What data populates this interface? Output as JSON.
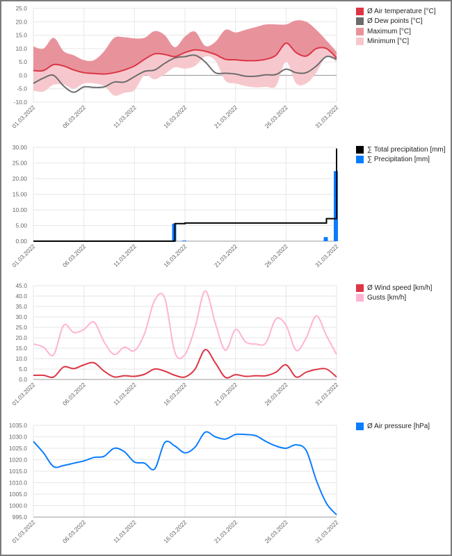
{
  "chart_data": [
    {
      "type": "area",
      "x": [
        "01.03.2022",
        "02.03.2022",
        "03.03.2022",
        "04.03.2022",
        "05.03.2022",
        "06.03.2022",
        "07.03.2022",
        "08.03.2022",
        "09.03.2022",
        "10.03.2022",
        "11.03.2022",
        "12.03.2022",
        "13.03.2022",
        "14.03.2022",
        "15.03.2022",
        "16.03.2022",
        "17.03.2022",
        "18.03.2022",
        "19.03.2022",
        "20.03.2022",
        "21.03.2022",
        "22.03.2022",
        "23.03.2022",
        "24.03.2022",
        "25.03.2022",
        "26.03.2022",
        "27.03.2022",
        "28.03.2022",
        "29.03.2022",
        "30.03.2022",
        "31.03.2022"
      ],
      "x_tick_labels": [
        "01.03.2022",
        "06.03.2022",
        "11.03.2022",
        "16.03.2022",
        "21.03.2022",
        "26.03.2022",
        "31.03.2022"
      ],
      "y_tick_labels": [
        "25.0",
        "20.0",
        "15.0",
        "10.0",
        "5.0",
        "0.0",
        "-5.0",
        "-10.0"
      ],
      "ylim": [
        -10,
        25
      ],
      "grid": true,
      "legend_position": "right",
      "series": [
        {
          "name": "Ø Air temperature [°C]",
          "color": "#dc3545",
          "values": [
            1.8,
            1.8,
            4,
            3.5,
            2,
            1,
            0.7,
            0.5,
            1,
            2,
            3.5,
            6,
            8,
            7.8,
            7,
            8.5,
            9.5,
            9,
            7.8,
            6,
            5.8,
            5.5,
            5.5,
            6,
            7.5,
            12,
            8.5,
            7.2,
            10,
            10,
            6.5
          ]
        },
        {
          "name": "Ø Dew points [°C]",
          "color": "#6c6c6c",
          "values": [
            -3,
            -1,
            0,
            -4,
            -6.3,
            -4.3,
            -4.5,
            -4.3,
            -2.5,
            -2.5,
            -0.5,
            1.5,
            2,
            4.5,
            6.5,
            7,
            7.5,
            5,
            1,
            0.8,
            0.5,
            -0.3,
            -0.3,
            0.2,
            0.3,
            2.3,
            1,
            1,
            3.5,
            7,
            6
          ]
        },
        {
          "name": "Maximum [°C]",
          "color": "#e8939c",
          "values": [
            10.8,
            10,
            14,
            9,
            7.5,
            5.7,
            5.7,
            9,
            14,
            14.2,
            13.8,
            14,
            16.5,
            15,
            10.5,
            14.5,
            16.3,
            11,
            12.5,
            17,
            16,
            17,
            18,
            19,
            19,
            19,
            20.5,
            20,
            17,
            13,
            8.8
          ]
        },
        {
          "name": "Minimum [°C]",
          "color": "#f6c8cd",
          "values": [
            -5.8,
            -6,
            -3.5,
            -3.5,
            -5,
            -3,
            -3,
            -4,
            -7.5,
            -6.5,
            -5.5,
            0,
            -1.5,
            0.5,
            3,
            2.5,
            3.5,
            7,
            5.5,
            -2,
            -3,
            -4,
            -4.5,
            -4.3,
            -4,
            5,
            -3,
            -3,
            1,
            7,
            5
          ]
        }
      ]
    },
    {
      "type": "bar",
      "x_tick_labels": [
        "01.03.2022",
        "06.03.2022",
        "11.03.2022",
        "16.03.2022",
        "21.03.2022",
        "26.03.2022",
        "31.03.2022"
      ],
      "y_tick_labels": [
        "30.00",
        "25.00",
        "20.00",
        "15.00",
        "10.00",
        "5.00",
        "0.00"
      ],
      "ylim": [
        0,
        30
      ],
      "grid": true,
      "legend_position": "right",
      "series": [
        {
          "name": "∑ Total precipitation [mm]",
          "color": "#000000",
          "type": "step",
          "values": [
            0,
            0,
            0,
            0,
            0,
            0,
            0,
            0,
            0,
            0,
            0,
            0,
            0,
            0,
            5.6,
            5.8,
            5.8,
            5.8,
            5.8,
            5.8,
            5.8,
            5.8,
            5.8,
            5.8,
            5.8,
            5.8,
            5.8,
            5.8,
            5.8,
            7.2,
            29.6
          ]
        },
        {
          "name": "∑ Precipitation [mm]",
          "color": "#0a7cff",
          "type": "bar",
          "values": [
            0,
            0,
            0,
            0,
            0,
            0,
            0,
            0,
            0,
            0,
            0,
            0,
            0,
            0,
            5.6,
            0.2,
            0,
            0,
            0,
            0,
            0,
            0,
            0,
            0,
            0,
            0,
            0,
            0,
            0,
            1.3,
            22.4
          ]
        }
      ]
    },
    {
      "type": "line",
      "x_tick_labels": [
        "01.03.2022",
        "06.03.2022",
        "11.03.2022",
        "16.03.2022",
        "21.03.2022",
        "26.03.2022",
        "31.03.2022"
      ],
      "y_tick_labels": [
        "45.0",
        "40.0",
        "35.0",
        "30.0",
        "25.0",
        "20.0",
        "15.0",
        "10.0",
        "5.0",
        "0.0"
      ],
      "ylim": [
        0,
        45
      ],
      "grid": true,
      "legend_position": "right",
      "series": [
        {
          "name": "Ø Wind speed [km/h]",
          "color": "#dc3545",
          "values": [
            2,
            2,
            1.2,
            6,
            5.2,
            7,
            8,
            4,
            1.2,
            1.8,
            1.5,
            2.5,
            5,
            4,
            2,
            1.2,
            5,
            14.3,
            8,
            1,
            2.3,
            1.5,
            1.8,
            1.8,
            3.5,
            7,
            1.2,
            3.5,
            4.8,
            5,
            1.2
          ]
        },
        {
          "name": "Gusts [km/h]",
          "color": "#ffb3d3",
          "values": [
            17,
            15.5,
            11.8,
            26,
            22.5,
            24,
            27.5,
            18,
            12,
            15.5,
            13.8,
            22,
            38,
            39,
            13,
            12,
            25,
            42.5,
            27,
            14,
            24,
            18,
            17,
            17.5,
            29,
            26,
            14,
            20,
            30.5,
            21,
            12
          ]
        }
      ]
    },
    {
      "type": "line",
      "x_tick_labels": [
        "01.03.2022",
        "06.03.2022",
        "11.03.2022",
        "16.03.2022",
        "21.03.2022",
        "26.03.2022",
        "31.03.2022"
      ],
      "y_tick_labels": [
        "1035.0",
        "1030.0",
        "1025.0",
        "1020.0",
        "1015.0",
        "1010.0",
        "1005.0",
        "1000.0",
        "995.0"
      ],
      "ylim": [
        995,
        1035
      ],
      "grid": true,
      "legend_position": "right",
      "series": [
        {
          "name": "Ø Air pressure [hPa]",
          "color": "#0a7cff",
          "values": [
            1028,
            1023,
            1017,
            1017.5,
            1018.5,
            1019.5,
            1021,
            1021.5,
            1025,
            1023.5,
            1019,
            1018.5,
            1016,
            1027.5,
            1026,
            1023,
            1025.5,
            1032,
            1030,
            1029,
            1031,
            1031,
            1030.5,
            1028,
            1026,
            1025,
            1026.5,
            1024,
            1011,
            1001,
            996
          ]
        }
      ]
    }
  ]
}
